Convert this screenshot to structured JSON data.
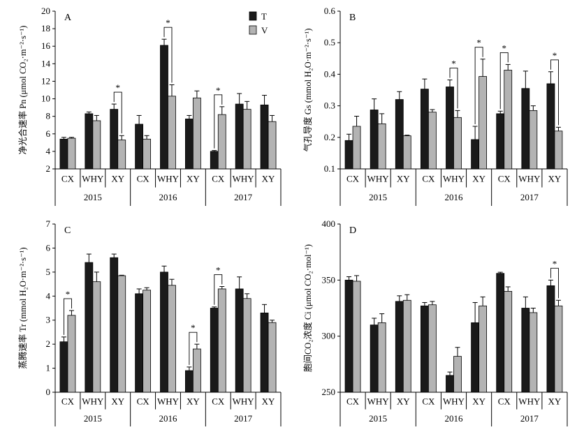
{
  "chart_data": [
    {
      "type": "bar",
      "panel_label": "A",
      "ylabel": "净光合速率 Pn (μmol CO₂·m⁻²·s⁻¹)",
      "ylim": [
        2,
        20
      ],
      "yticks": [
        "2",
        "4",
        "6",
        "8",
        "10",
        "12",
        "14",
        "16",
        "18",
        "20"
      ],
      "categories": [
        "CX",
        "WHY",
        "XY",
        "CX",
        "WHY",
        "XY",
        "CX",
        "WHY",
        "XY"
      ],
      "groups": [
        "2015",
        "2016",
        "2017"
      ],
      "legend": [
        "T",
        "V"
      ],
      "series": [
        {
          "name": "T",
          "values": [
            5.4,
            8.3,
            8.8,
            7.1,
            16.1,
            7.7,
            4.0,
            9.4,
            9.3
          ],
          "errors": [
            0.2,
            0.2,
            0.6,
            1.0,
            0.7,
            0.4,
            0.1,
            1.2,
            1.1
          ]
        },
        {
          "name": "V",
          "values": [
            5.5,
            7.5,
            5.3,
            5.4,
            10.3,
            10.1,
            8.2,
            8.8,
            7.4
          ],
          "errors": [
            0.1,
            0.6,
            0.5,
            0.4,
            1.3,
            0.8,
            0.9,
            0.9,
            0.7
          ]
        }
      ],
      "significant": [
        2,
        4,
        6
      ],
      "sig_label": "*"
    },
    {
      "type": "bar",
      "panel_label": "B",
      "ylabel": "气孔导度 Gs (mmol H₂O·m⁻²·s⁻¹)",
      "ylim": [
        0.1,
        0.6
      ],
      "yticks": [
        "0.1",
        "0.2",
        "0.3",
        "0.4",
        "0.5",
        "0.6"
      ],
      "categories": [
        "CX",
        "WHY",
        "XY",
        "CX",
        "WHY",
        "XY",
        "CX",
        "WHY",
        "XY"
      ],
      "groups": [
        "2015",
        "2016",
        "2017"
      ],
      "series": [
        {
          "name": "T",
          "values": [
            0.19,
            0.287,
            0.32,
            0.353,
            0.36,
            0.193,
            0.275,
            0.355,
            0.37
          ],
          "errors": [
            0.02,
            0.035,
            0.025,
            0.032,
            0.022,
            0.042,
            0.008,
            0.055,
            0.038
          ]
        },
        {
          "name": "V",
          "values": [
            0.235,
            0.243,
            0.205,
            0.28,
            0.263,
            0.393,
            0.413,
            0.285,
            0.22
          ],
          "errors": [
            0.032,
            0.032,
            0.002,
            0.008,
            0.022,
            0.055,
            0.018,
            0.015,
            0.012
          ]
        }
      ],
      "significant": [
        4,
        5,
        6,
        8
      ],
      "sig_label": "*"
    },
    {
      "type": "bar",
      "panel_label": "C",
      "ylabel": "蒸腾速率 Tr (mmol H₂O·m⁻²·s⁻¹)",
      "ylim": [
        0,
        7
      ],
      "yticks": [
        "0",
        "1",
        "2",
        "3",
        "4",
        "5",
        "6",
        "7"
      ],
      "categories": [
        "CX",
        "WHY",
        "XY",
        "CX",
        "WHY",
        "XY",
        "CX",
        "WHY",
        "XY"
      ],
      "groups": [
        "2015",
        "2016",
        "2017"
      ],
      "series": [
        {
          "name": "T",
          "values": [
            2.1,
            5.4,
            5.6,
            4.1,
            5.0,
            0.9,
            3.5,
            4.3,
            3.3
          ],
          "errors": [
            0.2,
            0.35,
            0.15,
            0.2,
            0.25,
            0.15,
            0.05,
            0.5,
            0.35
          ]
        },
        {
          "name": "V",
          "values": [
            3.2,
            4.6,
            4.85,
            4.25,
            4.45,
            1.8,
            4.3,
            3.9,
            2.9
          ],
          "errors": [
            0.2,
            0.4,
            0.02,
            0.1,
            0.25,
            0.2,
            0.1,
            0.2,
            0.1
          ]
        }
      ],
      "significant": [
        0,
        5,
        6
      ],
      "sig_label": "*"
    },
    {
      "type": "bar",
      "panel_label": "D",
      "ylabel": "胞间CO₂浓度 Ci (μmol CO₂·mol⁻¹)",
      "ylim": [
        250,
        400
      ],
      "yticks": [
        "250",
        "300",
        "350",
        "400"
      ],
      "categories": [
        "CX",
        "WHY",
        "XY",
        "CX",
        "WHY",
        "XY",
        "CX",
        "WHY",
        "XY"
      ],
      "groups": [
        "2015",
        "2016",
        "2017"
      ],
      "series": [
        {
          "name": "T",
          "values": [
            350,
            310,
            331,
            327,
            265,
            312,
            356,
            325,
            345
          ],
          "errors": [
            3,
            6,
            5,
            3,
            3,
            18,
            1,
            10,
            5
          ]
        },
        {
          "name": "V",
          "values": [
            349,
            312,
            332,
            328,
            282,
            327,
            340,
            321,
            327
          ],
          "errors": [
            5,
            8,
            5,
            3,
            8,
            8,
            4,
            4,
            5
          ]
        }
      ],
      "significant": [
        8
      ],
      "sig_label": "*"
    }
  ],
  "colors": {
    "T": "#1a1a1a",
    "V": "#b3b3b3",
    "axis": "#000000"
  }
}
